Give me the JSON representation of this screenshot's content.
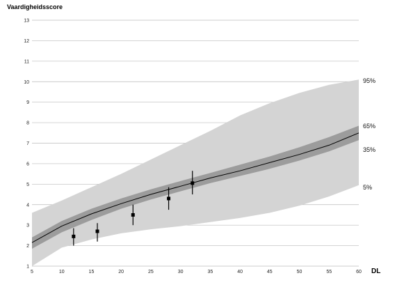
{
  "chart_data": {
    "type": "line",
    "ylabel": "Vaardigheidsscore",
    "xlabel": "DL",
    "xlim": [
      5,
      60
    ],
    "ylim": [
      1,
      13
    ],
    "x_ticks": [
      5,
      10,
      15,
      20,
      25,
      30,
      35,
      40,
      45,
      50,
      55,
      60
    ],
    "y_ticks": [
      1,
      2,
      3,
      4,
      5,
      6,
      7,
      8,
      9,
      10,
      11,
      12,
      13
    ],
    "grid": "horizontal",
    "colors": {
      "outer_band": "#d4d4d4",
      "inner_band": "#9c9c9c",
      "median": "#000000",
      "points": "#000000",
      "grid": "#bbbbbb"
    },
    "band_x": [
      5,
      10,
      15,
      20,
      25,
      30,
      35,
      40,
      45,
      50,
      55,
      60
    ],
    "percentile_bands": [
      {
        "label": "95%",
        "values": [
          3.6,
          4.2,
          4.85,
          5.5,
          6.2,
          6.9,
          7.6,
          8.35,
          8.95,
          9.45,
          9.85,
          10.1
        ]
      },
      {
        "label": "65%",
        "values": [
          2.4,
          3.2,
          3.8,
          4.3,
          4.75,
          5.15,
          5.55,
          5.95,
          6.35,
          6.8,
          7.3,
          7.85
        ]
      },
      {
        "label": "35%",
        "values": [
          1.85,
          2.65,
          3.25,
          3.8,
          4.25,
          4.65,
          5.05,
          5.4,
          5.75,
          6.15,
          6.6,
          7.15
        ]
      },
      {
        "label": "5%",
        "values": [
          1.0,
          1.9,
          2.3,
          2.6,
          2.8,
          2.95,
          3.15,
          3.35,
          3.6,
          3.95,
          4.4,
          4.95
        ]
      }
    ],
    "median": {
      "x": [
        5,
        10,
        15,
        20,
        25,
        30,
        35,
        40,
        45,
        50,
        55,
        60
      ],
      "y": [
        2.15,
        2.95,
        3.55,
        4.05,
        4.5,
        4.9,
        5.3,
        5.65,
        6.05,
        6.45,
        6.9,
        7.5
      ]
    },
    "points": [
      {
        "x": 12,
        "y": 2.45,
        "low": 2.0,
        "high": 2.85
      },
      {
        "x": 16,
        "y": 2.7,
        "low": 2.2,
        "high": 3.1
      },
      {
        "x": 22,
        "y": 3.5,
        "low": 3.0,
        "high": 4.0
      },
      {
        "x": 28,
        "y": 4.3,
        "low": 3.75,
        "high": 4.85
      },
      {
        "x": 32,
        "y": 5.05,
        "low": 4.5,
        "high": 5.65
      }
    ]
  }
}
